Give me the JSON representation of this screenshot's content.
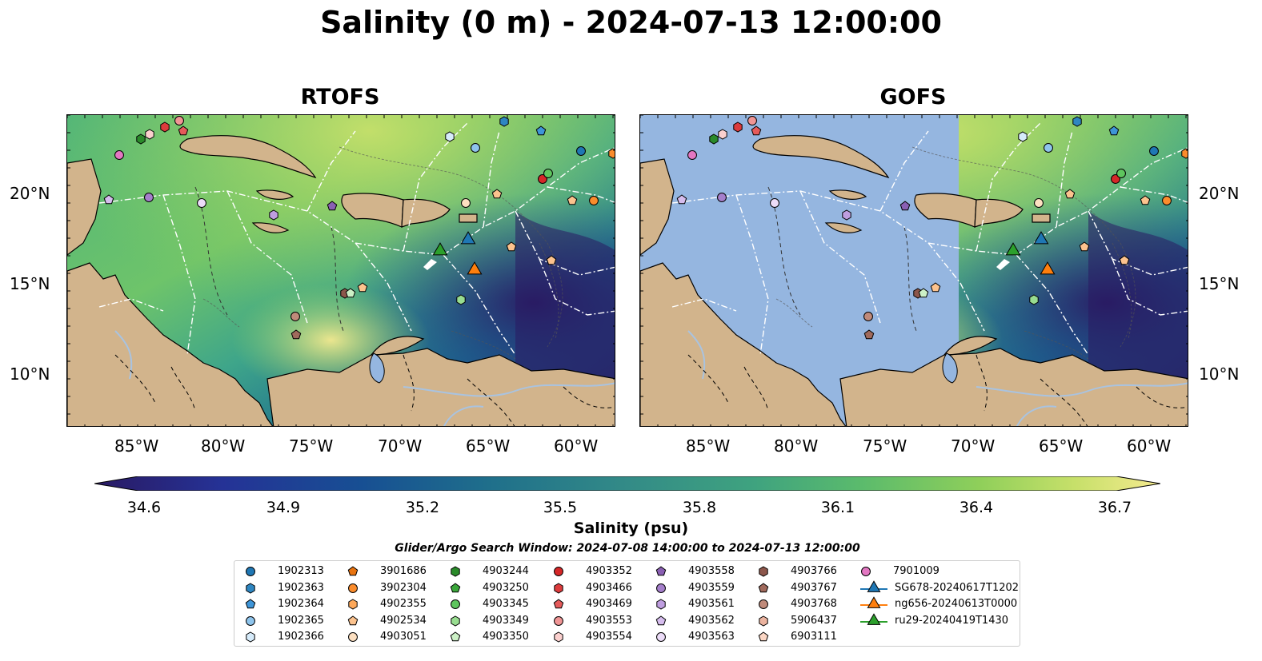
{
  "title": "Salinity (0 m) - 2024-07-13 12:00:00",
  "panels": [
    {
      "title": "RTOFS"
    },
    {
      "title": "GOFS"
    }
  ],
  "axes": {
    "x_ticks": [
      "85°W",
      "80°W",
      "75°W",
      "70°W",
      "65°W",
      "60°W"
    ],
    "y_ticks": [
      "20°N",
      "15°N",
      "10°N"
    ]
  },
  "colorbar": {
    "label": "Salinity (psu)",
    "ticks": [
      "34.6",
      "34.9",
      "35.2",
      "35.5",
      "35.8",
      "36.1",
      "36.4",
      "36.7"
    ],
    "min": 34.6,
    "max": 36.7,
    "extend": "both",
    "colormap": [
      "#2a1a63",
      "#253296",
      "#174f93",
      "#1f6f8b",
      "#338b87",
      "#3fa37f",
      "#5bbb6c",
      "#8fcf5a",
      "#c7e06a",
      "#f5ea8f"
    ]
  },
  "search_window": "Glider/Argo Search Window: 2024-07-08 14:00:00 to 2024-07-13 12:00:00",
  "legend": [
    {
      "label": "1902313",
      "marker": "circle",
      "color": "#1f77b4"
    },
    {
      "label": "1902363",
      "marker": "hexagon",
      "color": "#2e86c1"
    },
    {
      "label": "1902364",
      "marker": "pentagon",
      "color": "#3e95d8"
    },
    {
      "label": "1902365",
      "marker": "circle",
      "color": "#8ec4ec"
    },
    {
      "label": "1902366",
      "marker": "hexagon",
      "color": "#d6ebfa"
    },
    {
      "label": "3901686",
      "marker": "pentagon",
      "color": "#e8730f"
    },
    {
      "label": "3902304",
      "marker": "circle",
      "color": "#fb8c2c"
    },
    {
      "label": "4902355",
      "marker": "hexagon",
      "color": "#fda85a"
    },
    {
      "label": "4902534",
      "marker": "pentagon",
      "color": "#fcc38e"
    },
    {
      "label": "4903051",
      "marker": "circle",
      "color": "#fde0c1"
    },
    {
      "label": "4903244",
      "marker": "hexagon",
      "color": "#2a8a2a"
    },
    {
      "label": "4903250",
      "marker": "pentagon",
      "color": "#3aa63a"
    },
    {
      "label": "4903345",
      "marker": "circle",
      "color": "#5ec65e"
    },
    {
      "label": "4903349",
      "marker": "hexagon",
      "color": "#98dd90"
    },
    {
      "label": "4903350",
      "marker": "pentagon",
      "color": "#ccf0c6"
    },
    {
      "label": "4903352",
      "marker": "circle",
      "color": "#d62728"
    },
    {
      "label": "4903466",
      "marker": "hexagon",
      "color": "#dc3b3c"
    },
    {
      "label": "4903469",
      "marker": "pentagon",
      "color": "#e55a5a"
    },
    {
      "label": "4903553",
      "marker": "circle",
      "color": "#f09595"
    },
    {
      "label": "4903554",
      "marker": "hexagon",
      "color": "#fbd0ce"
    },
    {
      "label": "4903558",
      "marker": "pentagon",
      "color": "#8a5fb3"
    },
    {
      "label": "4903559",
      "marker": "circle",
      "color": "#a57fcb"
    },
    {
      "label": "4903561",
      "marker": "hexagon",
      "color": "#bf9ee0"
    },
    {
      "label": "4903562",
      "marker": "pentagon",
      "color": "#d6bdee"
    },
    {
      "label": "4903563",
      "marker": "circle",
      "color": "#ecdcf8"
    },
    {
      "label": "4903766",
      "marker": "hexagon",
      "color": "#8c564b"
    },
    {
      "label": "4903767",
      "marker": "pentagon",
      "color": "#a06a5c"
    },
    {
      "label": "4903768",
      "marker": "circle",
      "color": "#c08a7a"
    },
    {
      "label": "5906437",
      "marker": "hexagon",
      "color": "#ebb39f"
    },
    {
      "label": "6903111",
      "marker": "pentagon",
      "color": "#fbd6c4"
    },
    {
      "label": "7901009",
      "marker": "circle",
      "color": "#e377c2"
    },
    {
      "label": "SG678-20240617T1202",
      "marker": "triangle",
      "color": "#1f77b4"
    },
    {
      "label": "ng656-20240613T0000",
      "marker": "triangle",
      "color": "#ff7f0e"
    },
    {
      "label": "ru29-20240419T1430",
      "marker": "triangle",
      "color": "#2ca02c"
    }
  ],
  "colors": {
    "land": "#d2b48c",
    "nodata": "#95b6e0",
    "rivers": "#a9c3e0"
  }
}
